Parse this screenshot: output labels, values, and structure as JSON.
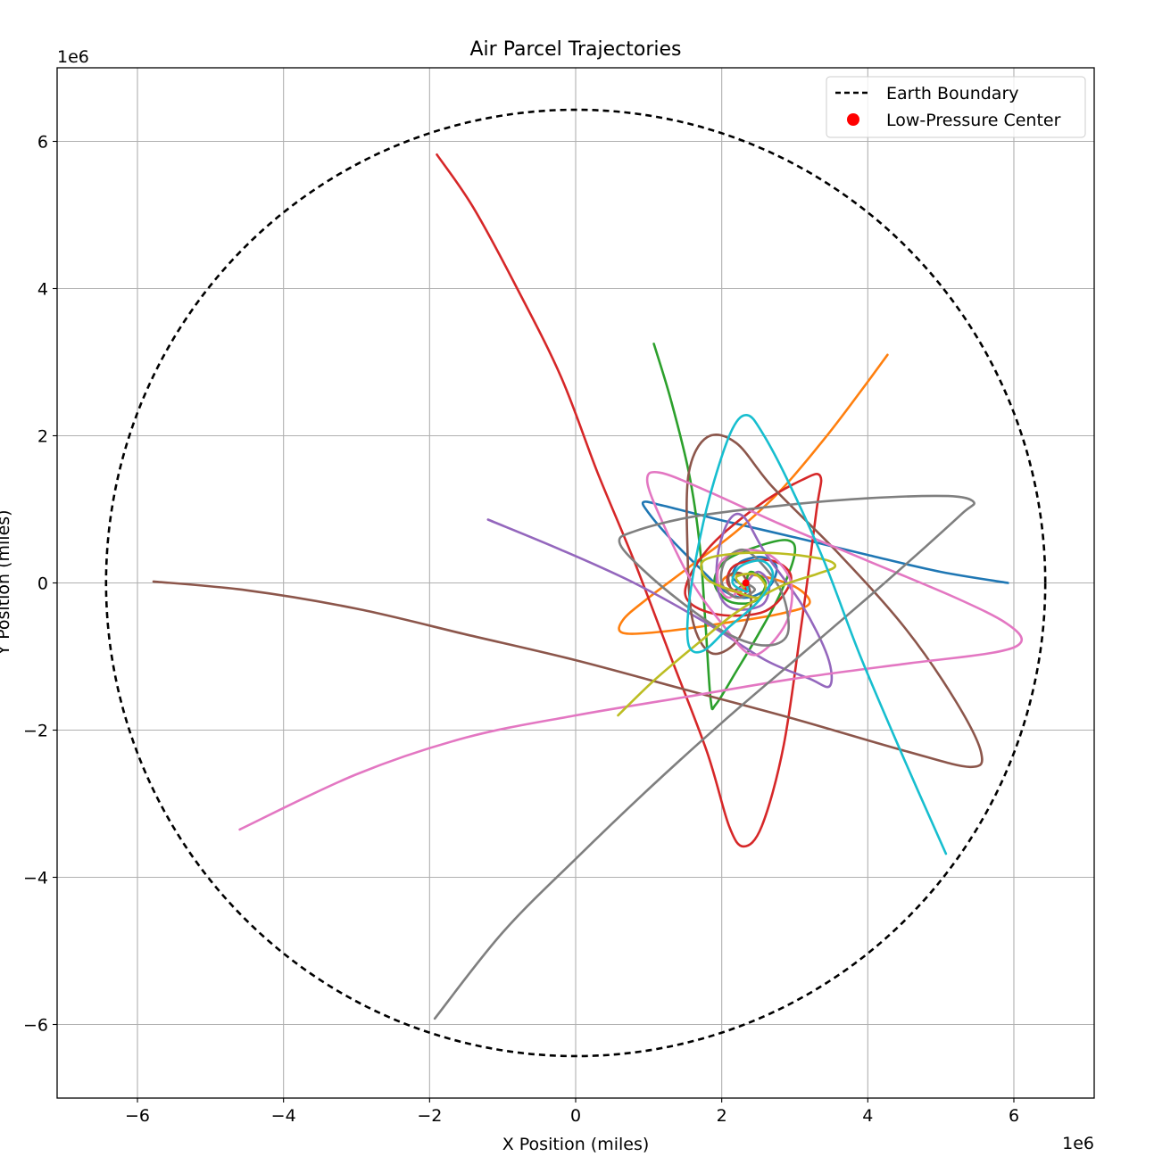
{
  "chart_data": {
    "type": "line",
    "title": "Air Parcel Trajectories",
    "xlabel": "X Position (miles)",
    "ylabel": "Y Position (miles)",
    "xlim": [
      -7.1,
      7.1
    ],
    "ylim": [
      -7.0,
      7.0
    ],
    "axis_scale_label": "1e6",
    "axis_multiplier": "1e6",
    "grid": true,
    "legend": {
      "placement": "top-right",
      "entries": [
        {
          "label": "Earth Boundary",
          "style": "dashed-line",
          "color": "#000000"
        },
        {
          "label": "Low-Pressure Center",
          "style": "marker",
          "color": "#ff0000"
        }
      ]
    },
    "xticks": [
      {
        "value": -6,
        "label": "−6"
      },
      {
        "value": -4,
        "label": "−4"
      },
      {
        "value": -2,
        "label": "−2"
      },
      {
        "value": 0,
        "label": "0"
      },
      {
        "value": 2,
        "label": "2"
      },
      {
        "value": 4,
        "label": "4"
      },
      {
        "value": 6,
        "label": "6"
      }
    ],
    "yticks": [
      {
        "value": -6,
        "label": "−6"
      },
      {
        "value": -4,
        "label": "−4"
      },
      {
        "value": -2,
        "label": "−2"
      },
      {
        "value": 0,
        "label": "0"
      },
      {
        "value": 2,
        "label": "2"
      },
      {
        "value": 4,
        "label": "4"
      },
      {
        "value": 6,
        "label": "6"
      }
    ],
    "boundary": {
      "name": "Earth Boundary",
      "center": [
        0,
        0
      ],
      "radius": 6.43,
      "color": "#000000"
    },
    "low_pressure_center": {
      "name": "Low-Pressure Center",
      "x": 2.33,
      "y": 0.0,
      "color": "#ff0000"
    },
    "series": [
      {
        "color": "#1f77b4",
        "points": [
          [
            5.92,
            0.0
          ],
          [
            5.0,
            0.15
          ],
          [
            4.0,
            0.38
          ],
          [
            3.0,
            0.62
          ],
          [
            2.0,
            0.85
          ],
          [
            1.2,
            1.05
          ],
          [
            0.93,
            1.1
          ],
          [
            1.0,
            0.95
          ],
          [
            1.3,
            0.6
          ],
          [
            1.7,
            0.2
          ],
          [
            2.05,
            -0.12
          ],
          [
            2.35,
            -0.2
          ],
          [
            2.65,
            -0.05
          ],
          [
            2.75,
            0.22
          ],
          [
            2.55,
            0.35
          ],
          [
            2.25,
            0.28
          ],
          [
            2.15,
            0.08
          ],
          [
            2.3,
            -0.03
          ],
          [
            2.33,
            0.0
          ]
        ]
      },
      {
        "color": "#ff7f0e",
        "points": [
          [
            4.27,
            3.1
          ],
          [
            3.9,
            2.6
          ],
          [
            3.4,
            1.95
          ],
          [
            2.8,
            1.25
          ],
          [
            2.2,
            0.7
          ],
          [
            1.6,
            0.25
          ],
          [
            1.0,
            -0.2
          ],
          [
            0.65,
            -0.5
          ],
          [
            0.65,
            -0.68
          ],
          [
            1.2,
            -0.66
          ],
          [
            2.0,
            -0.55
          ],
          [
            2.8,
            -0.42
          ],
          [
            3.2,
            -0.28
          ],
          [
            3.0,
            -0.05
          ],
          [
            2.5,
            0.1
          ],
          [
            2.1,
            0.1
          ],
          [
            2.0,
            -0.05
          ],
          [
            2.25,
            -0.12
          ],
          [
            2.33,
            0.0
          ]
        ]
      },
      {
        "color": "#2ca02c",
        "points": [
          [
            1.07,
            3.25
          ],
          [
            1.3,
            2.5
          ],
          [
            1.55,
            1.5
          ],
          [
            1.7,
            0.5
          ],
          [
            1.78,
            -0.6
          ],
          [
            1.85,
            -1.6
          ],
          [
            1.92,
            -1.65
          ],
          [
            2.2,
            -1.2
          ],
          [
            2.5,
            -0.7
          ],
          [
            2.8,
            -0.15
          ],
          [
            3.0,
            0.4
          ],
          [
            2.9,
            0.58
          ],
          [
            2.5,
            0.5
          ],
          [
            2.05,
            0.3
          ],
          [
            1.9,
            0.0
          ],
          [
            2.1,
            -0.25
          ],
          [
            2.45,
            -0.25
          ],
          [
            2.6,
            0.0
          ],
          [
            2.4,
            0.15
          ],
          [
            2.33,
            0.0
          ]
        ]
      },
      {
        "color": "#d62728",
        "points": [
          [
            -1.9,
            5.82
          ],
          [
            -1.4,
            5.1
          ],
          [
            -0.8,
            4.0
          ],
          [
            -0.2,
            2.8
          ],
          [
            0.3,
            1.5
          ],
          [
            0.8,
            0.3
          ],
          [
            1.3,
            -1.0
          ],
          [
            1.8,
            -2.3
          ],
          [
            2.1,
            -3.3
          ],
          [
            2.3,
            -3.58
          ],
          [
            2.55,
            -3.3
          ],
          [
            2.85,
            -2.2
          ],
          [
            3.1,
            -0.5
          ],
          [
            3.3,
            1.0
          ],
          [
            3.35,
            1.45
          ],
          [
            3.1,
            1.4
          ],
          [
            2.5,
            1.05
          ],
          [
            1.8,
            0.45
          ],
          [
            1.5,
            -0.15
          ],
          [
            1.9,
            -0.42
          ],
          [
            2.6,
            -0.38
          ],
          [
            2.95,
            0.05
          ],
          [
            2.7,
            0.3
          ],
          [
            2.2,
            0.25
          ],
          [
            2.08,
            0.0
          ],
          [
            2.3,
            -0.18
          ],
          [
            2.33,
            0.0
          ]
        ]
      },
      {
        "color": "#9467bd",
        "points": [
          [
            -1.2,
            0.86
          ],
          [
            -0.2,
            0.45
          ],
          [
            0.8,
            0.0
          ],
          [
            1.8,
            -0.55
          ],
          [
            2.6,
            -1.05
          ],
          [
            3.2,
            -1.3
          ],
          [
            3.48,
            -1.4
          ],
          [
            3.45,
            -1.0
          ],
          [
            3.1,
            -0.3
          ],
          [
            2.6,
            0.4
          ],
          [
            2.3,
            0.9
          ],
          [
            2.1,
            0.85
          ],
          [
            1.95,
            0.4
          ],
          [
            1.95,
            -0.1
          ],
          [
            2.15,
            -0.35
          ],
          [
            2.55,
            -0.3
          ],
          [
            2.65,
            -0.02
          ],
          [
            2.5,
            0.15
          ],
          [
            2.33,
            0.0
          ]
        ]
      },
      {
        "color": "#8c564b",
        "points": [
          [
            -5.78,
            0.02
          ],
          [
            -4.5,
            -0.1
          ],
          [
            -3.0,
            -0.35
          ],
          [
            -1.5,
            -0.7
          ],
          [
            0.0,
            -1.05
          ],
          [
            1.5,
            -1.45
          ],
          [
            3.0,
            -1.85
          ],
          [
            4.5,
            -2.28
          ],
          [
            5.4,
            -2.5
          ],
          [
            5.55,
            -2.3
          ],
          [
            5.2,
            -1.6
          ],
          [
            4.5,
            -0.6
          ],
          [
            3.6,
            0.4
          ],
          [
            2.7,
            1.3
          ],
          [
            2.2,
            1.9
          ],
          [
            1.8,
            1.98
          ],
          [
            1.55,
            1.5
          ],
          [
            1.53,
            0.5
          ],
          [
            1.6,
            -0.5
          ],
          [
            1.85,
            -0.95
          ],
          [
            2.2,
            -0.8
          ],
          [
            2.4,
            -0.3
          ],
          [
            2.3,
            0.1
          ],
          [
            2.1,
            0.1
          ],
          [
            2.15,
            -0.1
          ],
          [
            2.33,
            0.0
          ]
        ]
      },
      {
        "color": "#e377c2",
        "points": [
          [
            -4.6,
            -3.35
          ],
          [
            -3.0,
            -2.6
          ],
          [
            -1.5,
            -2.1
          ],
          [
            0.0,
            -1.8
          ],
          [
            1.5,
            -1.55
          ],
          [
            3.0,
            -1.3
          ],
          [
            4.5,
            -1.1
          ],
          [
            5.7,
            -0.95
          ],
          [
            6.1,
            -0.8
          ],
          [
            5.9,
            -0.55
          ],
          [
            5.2,
            -0.2
          ],
          [
            4.0,
            0.3
          ],
          [
            2.8,
            0.8
          ],
          [
            1.8,
            1.25
          ],
          [
            1.15,
            1.5
          ],
          [
            0.98,
            1.38
          ],
          [
            1.2,
            0.8
          ],
          [
            1.6,
            0.0
          ],
          [
            2.0,
            -0.55
          ],
          [
            2.35,
            -0.95
          ],
          [
            2.6,
            -0.9
          ],
          [
            2.9,
            -0.5
          ],
          [
            2.95,
            0.0
          ],
          [
            2.7,
            0.35
          ],
          [
            2.33,
            0.45
          ],
          [
            2.0,
            0.3
          ],
          [
            1.95,
            0.0
          ],
          [
            2.1,
            -0.2
          ],
          [
            2.33,
            0.0
          ]
        ]
      },
      {
        "color": "#7f7f7f",
        "points": [
          [
            -1.93,
            -5.92
          ],
          [
            -1.0,
            -4.75
          ],
          [
            0.0,
            -3.75
          ],
          [
            1.0,
            -2.8
          ],
          [
            2.0,
            -1.9
          ],
          [
            3.0,
            -1.05
          ],
          [
            4.0,
            -0.2
          ],
          [
            4.8,
            0.5
          ],
          [
            5.3,
            0.95
          ],
          [
            5.45,
            1.1
          ],
          [
            5.1,
            1.18
          ],
          [
            4.0,
            1.15
          ],
          [
            2.8,
            1.05
          ],
          [
            1.6,
            0.9
          ],
          [
            0.8,
            0.7
          ],
          [
            0.6,
            0.55
          ],
          [
            0.9,
            0.2
          ],
          [
            1.5,
            -0.3
          ],
          [
            2.1,
            -0.7
          ],
          [
            2.6,
            -0.85
          ],
          [
            2.9,
            -0.7
          ],
          [
            2.85,
            -0.2
          ],
          [
            2.6,
            0.2
          ],
          [
            2.3,
            0.45
          ],
          [
            2.05,
            0.3
          ],
          [
            2.0,
            0.0
          ],
          [
            2.2,
            -0.2
          ],
          [
            2.45,
            -0.1
          ],
          [
            2.33,
            0.0
          ]
        ]
      },
      {
        "color": "#bcbd22",
        "points": [
          [
            0.58,
            -1.8
          ],
          [
            1.1,
            -1.3
          ],
          [
            1.7,
            -0.8
          ],
          [
            2.2,
            -0.4
          ],
          [
            2.8,
            -0.05
          ],
          [
            3.3,
            0.12
          ],
          [
            3.55,
            0.22
          ],
          [
            3.4,
            0.32
          ],
          [
            2.8,
            0.4
          ],
          [
            2.2,
            0.4
          ],
          [
            1.75,
            0.3
          ],
          [
            1.8,
            0.05
          ],
          [
            2.2,
            -0.12
          ],
          [
            2.5,
            -0.2
          ],
          [
            2.6,
            -0.05
          ],
          [
            2.45,
            0.12
          ],
          [
            2.2,
            0.08
          ],
          [
            2.3,
            -0.05
          ],
          [
            2.33,
            0.0
          ]
        ]
      },
      {
        "color": "#17becf",
        "points": [
          [
            5.07,
            -3.68
          ],
          [
            4.5,
            -2.4
          ],
          [
            3.9,
            -1.0
          ],
          [
            3.4,
            0.3
          ],
          [
            2.9,
            1.4
          ],
          [
            2.55,
            2.05
          ],
          [
            2.35,
            2.28
          ],
          [
            2.15,
            2.1
          ],
          [
            1.9,
            1.4
          ],
          [
            1.7,
            0.6
          ],
          [
            1.55,
            -0.3
          ],
          [
            1.55,
            -0.85
          ],
          [
            1.75,
            -0.92
          ],
          [
            2.1,
            -0.6
          ],
          [
            2.5,
            -0.25
          ],
          [
            2.7,
            0.1
          ],
          [
            2.55,
            0.3
          ],
          [
            2.25,
            0.22
          ],
          [
            2.15,
            0.0
          ],
          [
            2.35,
            -0.12
          ],
          [
            2.33,
            0.0
          ]
        ]
      }
    ]
  }
}
